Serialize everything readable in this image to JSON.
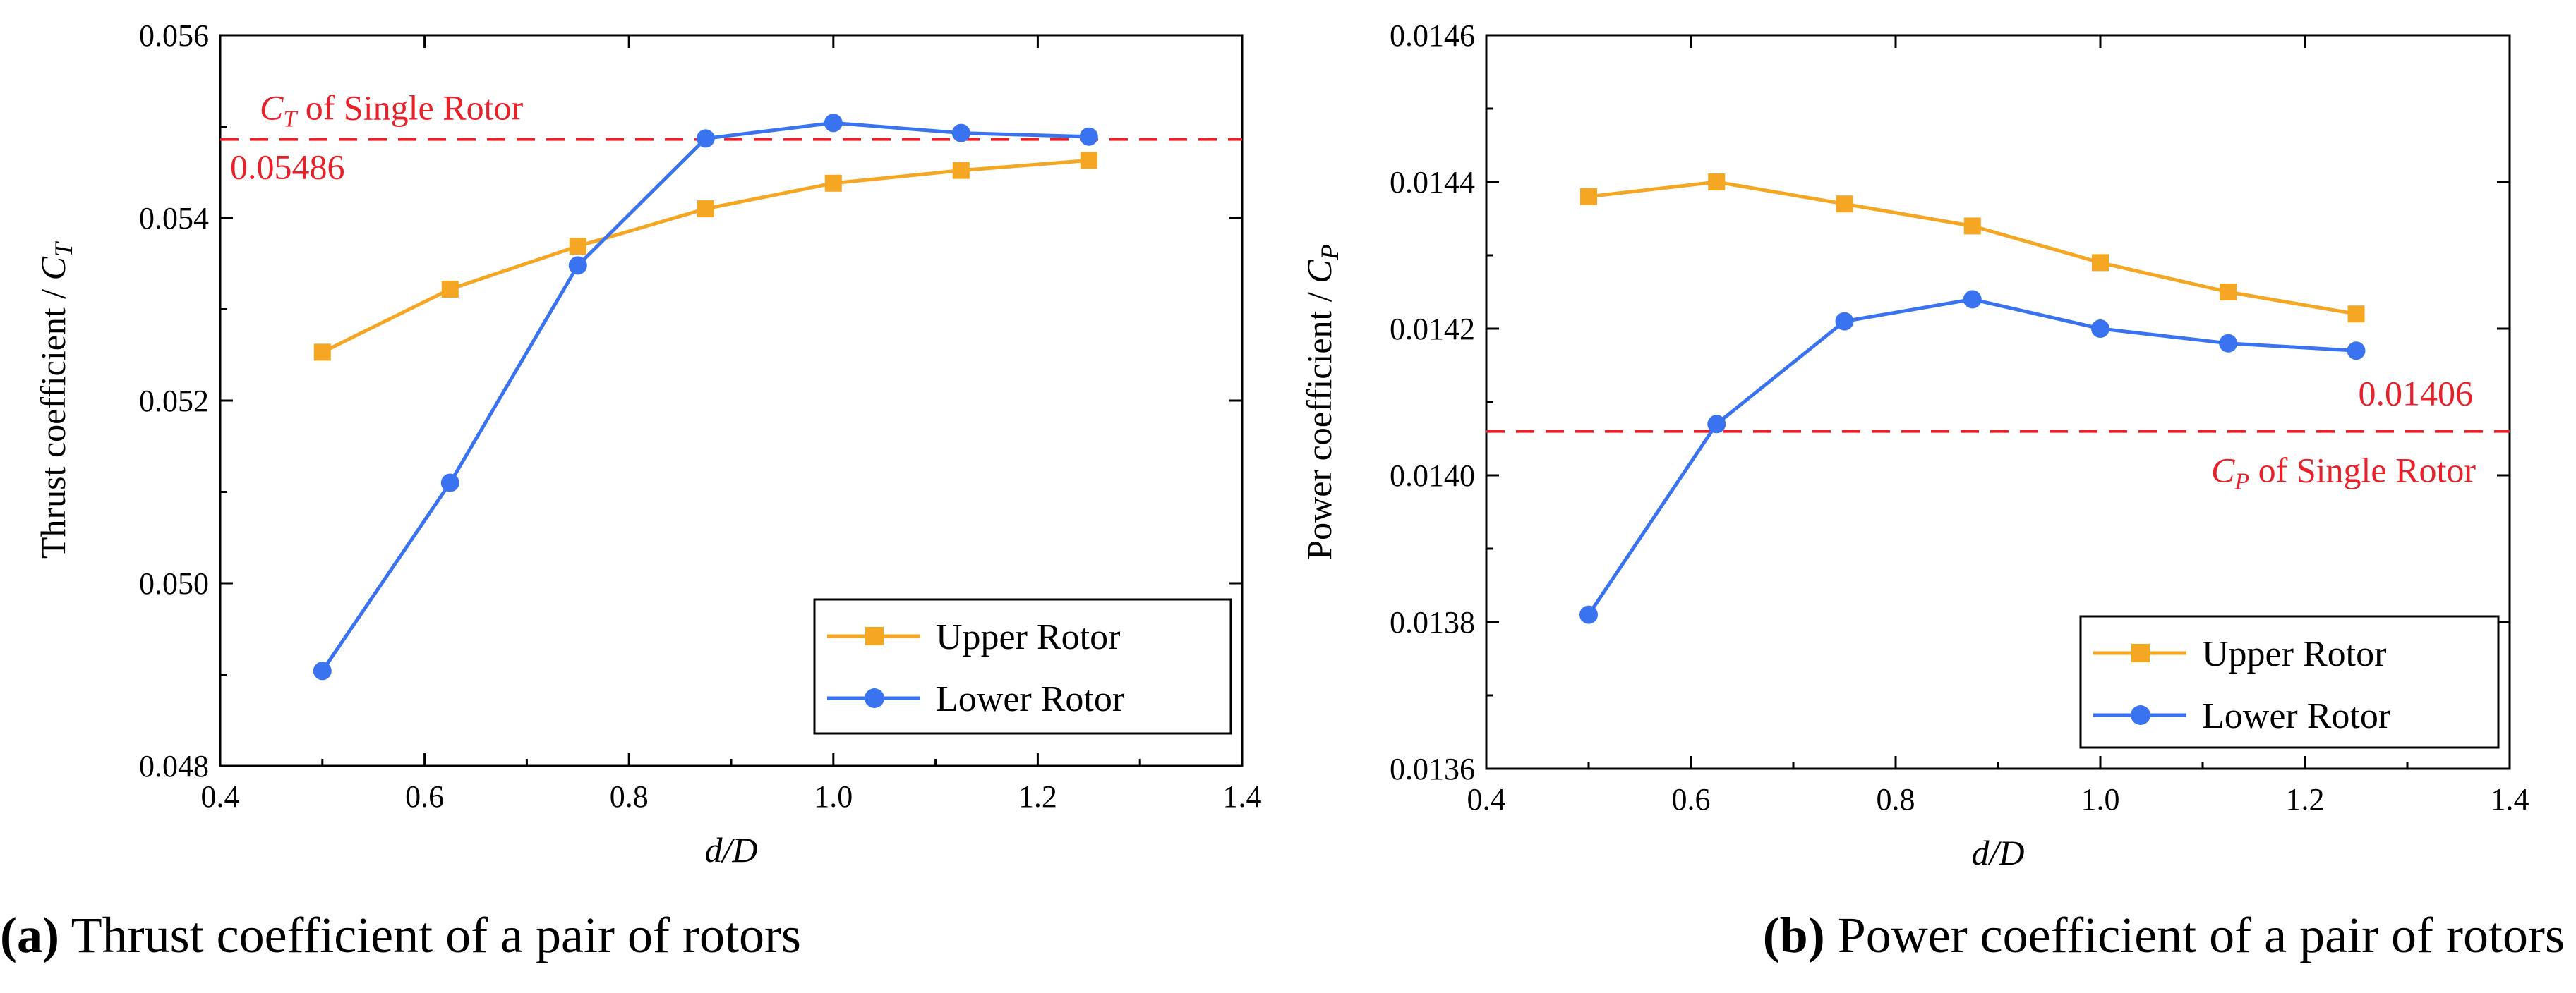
{
  "chart_data": [
    {
      "id": "a",
      "type": "line",
      "xlabel": "d/D",
      "ylabel_prefix": "Thrust coefficient / ",
      "ylabel_symbol": "C",
      "ylabel_sub": "T",
      "xlim": [
        0.4,
        1.4
      ],
      "ylim": [
        0.048,
        0.056
      ],
      "xticks": [
        0.4,
        0.6,
        0.8,
        1.0,
        1.2,
        1.4
      ],
      "xtick_labels": [
        "0.4",
        "0.6",
        "0.8",
        "1.0",
        "1.2",
        "1.4"
      ],
      "yticks": [
        0.048,
        0.05,
        0.052,
        0.054,
        0.056
      ],
      "ytick_labels": [
        "0.048",
        "0.050",
        "0.052",
        "0.054",
        "0.056"
      ],
      "x": [
        0.5,
        0.625,
        0.75,
        0.875,
        1.0,
        1.125,
        1.25
      ],
      "series": [
        {
          "name": "Upper Rotor",
          "color": "#f5a623",
          "marker": "square",
          "values": [
            0.05253,
            0.05322,
            0.05369,
            0.0541,
            0.05438,
            0.05452,
            0.05463
          ]
        },
        {
          "name": "Lower Rotor",
          "color": "#3a73f0",
          "marker": "circle",
          "values": [
            0.04904,
            0.0511,
            0.05348,
            0.05487,
            0.05504,
            0.05493,
            0.05489
          ]
        }
      ],
      "reference": {
        "value": 0.05486,
        "label": "0.05486",
        "note_symbol": "C",
        "note_sub": "T",
        "note_text": " of Single Rotor",
        "color": "#e8202a"
      },
      "legend_position": "bottom-right",
      "caption_letter": "(a)",
      "caption_text": " Thrust coefficient of a pair of rotors"
    },
    {
      "id": "b",
      "type": "line",
      "xlabel": "d/D",
      "ylabel_prefix": "Power coefficient / ",
      "ylabel_symbol": "C",
      "ylabel_sub": "P",
      "xlim": [
        0.4,
        1.4
      ],
      "ylim": [
        0.0136,
        0.0146
      ],
      "xticks": [
        0.4,
        0.6,
        0.8,
        1.0,
        1.2,
        1.4
      ],
      "xtick_labels": [
        "0.4",
        "0.6",
        "0.8",
        "1.0",
        "1.2",
        "1.4"
      ],
      "yticks": [
        0.0136,
        0.0138,
        0.014,
        0.0142,
        0.0144,
        0.0146
      ],
      "ytick_labels": [
        "0.0136",
        "0.0138",
        "0.0140",
        "0.0142",
        "0.0144",
        "0.0146"
      ],
      "x": [
        0.5,
        0.625,
        0.75,
        0.875,
        1.0,
        1.125,
        1.25
      ],
      "series": [
        {
          "name": "Upper Rotor",
          "color": "#f5a623",
          "marker": "square",
          "values": [
            0.01438,
            0.0144,
            0.01437,
            0.01434,
            0.01429,
            0.01425,
            0.01422
          ]
        },
        {
          "name": "Lower Rotor",
          "color": "#3a73f0",
          "marker": "circle",
          "values": [
            0.01381,
            0.01407,
            0.01421,
            0.01424,
            0.0142,
            0.01418,
            0.01417
          ]
        }
      ],
      "reference": {
        "value": 0.01406,
        "label": "0.01406",
        "note_symbol": "C",
        "note_sub": "P",
        "note_text": " of Single Rotor",
        "color": "#e8202a"
      },
      "legend_position": "bottom-right",
      "caption_letter": "(b)",
      "caption_text": " Power coefficient of a pair of rotors"
    }
  ]
}
